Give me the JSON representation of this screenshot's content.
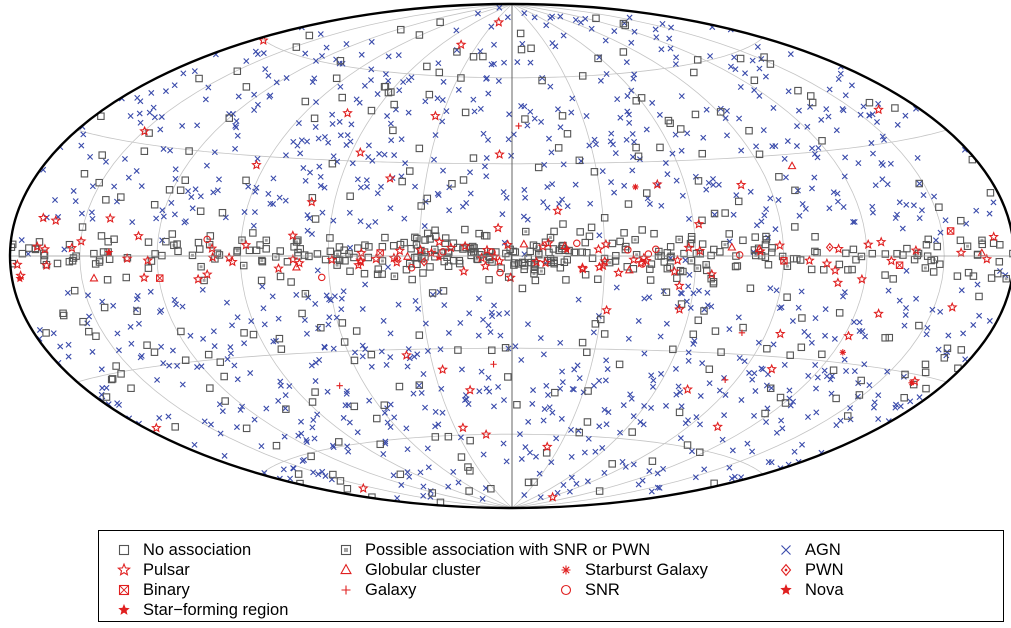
{
  "chart_data": {
    "type": "scatter",
    "projection": "Hammer-Aitoff all-sky map (Galactic coordinates)",
    "title": "",
    "xlabel": "",
    "ylabel": "",
    "grid": true,
    "legend_placement": "bottom",
    "xlim": [
      -180,
      180
    ],
    "ylim": [
      -90,
      90
    ],
    "point_counts_estimated": {
      "AGN": 1000,
      "No association": 540,
      "Pulsar": 120,
      "Possible association with SNR or PWN": 60,
      "SNR": 12,
      "Globular cluster": 10,
      "Binary": 5,
      "Galaxy": 5,
      "Star-forming region": 3,
      "Starburst Galaxy": 3,
      "PWN": 3,
      "Nova": 1
    },
    "series": [
      {
        "name": "No association",
        "marker": "square",
        "color": "#555555"
      },
      {
        "name": "Possible association with SNR or PWN",
        "marker": "square-dotted",
        "color": "#555555"
      },
      {
        "name": "AGN",
        "marker": "x",
        "color": "#3a4bab"
      },
      {
        "name": "Pulsar",
        "marker": "star",
        "color": "#e02020"
      },
      {
        "name": "Globular cluster",
        "marker": "triangle",
        "color": "#e02020"
      },
      {
        "name": "Starburst Galaxy",
        "marker": "asterisk",
        "color": "#e02020"
      },
      {
        "name": "PWN",
        "marker": "diamond-dot",
        "color": "#e02020"
      },
      {
        "name": "Binary",
        "marker": "square-x",
        "color": "#e02020"
      },
      {
        "name": "Galaxy",
        "marker": "plus",
        "color": "#e02020"
      },
      {
        "name": "SNR",
        "marker": "circle",
        "color": "#e02020"
      },
      {
        "name": "Nova",
        "marker": "filled-star",
        "color": "#e02020"
      },
      {
        "name": "Star-forming region",
        "marker": "filled-star",
        "color": "#e02020"
      }
    ]
  },
  "legend": {
    "items": [
      {
        "key": "noassoc",
        "label": "No association",
        "marker": "square",
        "color": "#555555"
      },
      {
        "key": "possible",
        "label": "Possible association with SNR or PWN",
        "marker": "square-dotted",
        "color": "#555555"
      },
      {
        "key": "agn",
        "label": "AGN",
        "marker": "x",
        "color": "#3a4bab"
      },
      {
        "key": "pulsar",
        "label": "Pulsar",
        "marker": "star",
        "color": "#e02020"
      },
      {
        "key": "globular",
        "label": "Globular cluster",
        "marker": "triangle",
        "color": "#e02020"
      },
      {
        "key": "starburst",
        "label": "Starburst Galaxy",
        "marker": "asterisk",
        "color": "#e02020"
      },
      {
        "key": "pwn",
        "label": "PWN",
        "marker": "diamond-dot",
        "color": "#e02020"
      },
      {
        "key": "binary",
        "label": "Binary",
        "marker": "square-x",
        "color": "#e02020"
      },
      {
        "key": "galaxy",
        "label": "Galaxy",
        "marker": "plus",
        "color": "#e02020"
      },
      {
        "key": "snr",
        "label": "SNR",
        "marker": "circle",
        "color": "#e02020"
      },
      {
        "key": "nova",
        "label": "Nova",
        "marker": "filled-star",
        "color": "#e02020"
      },
      {
        "key": "sfr",
        "label": "Star−forming region",
        "marker": "filled-star",
        "color": "#e02020"
      }
    ]
  }
}
